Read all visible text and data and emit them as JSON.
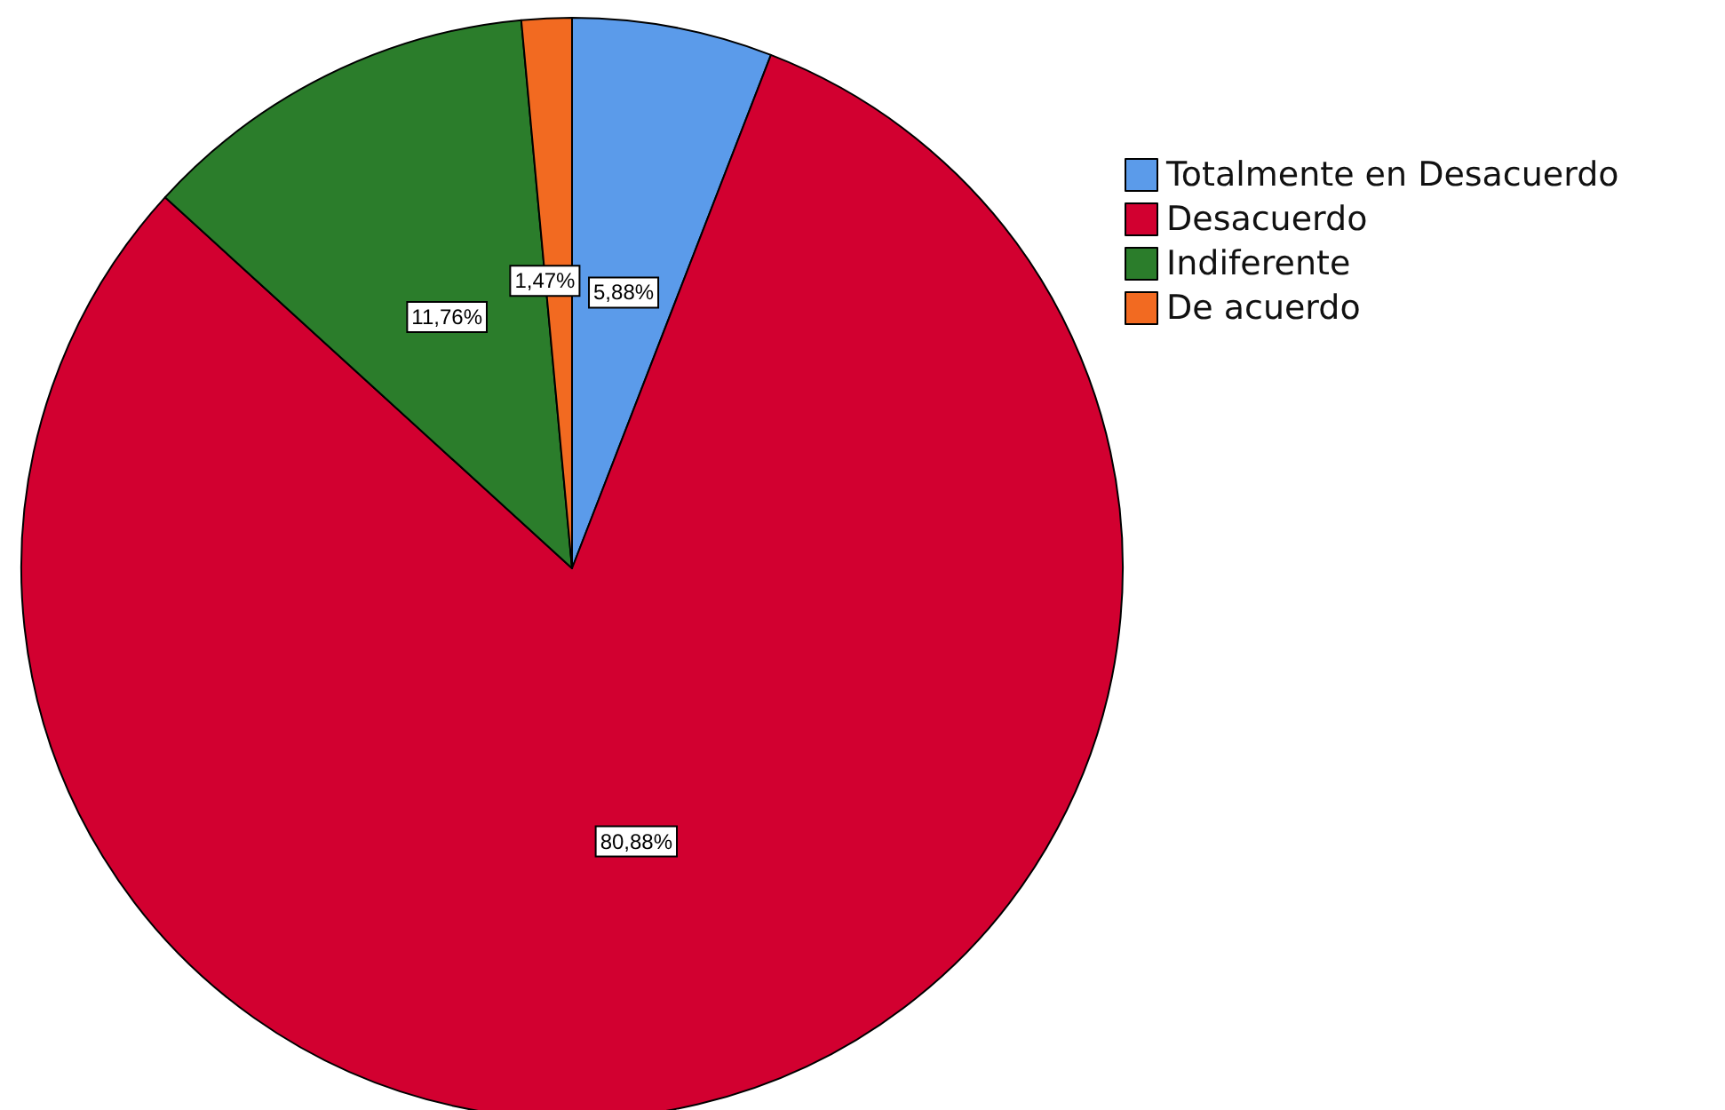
{
  "chart_data": {
    "type": "pie",
    "categories": [
      "Totalmente en Desacuerdo",
      "Desacuerdo",
      "Indiferente",
      "De acuerdo"
    ],
    "values": [
      5.88,
      80.88,
      11.76,
      1.47
    ],
    "colors": [
      "#5b9bea",
      "#d20030",
      "#2b7d2b",
      "#f26a21"
    ],
    "value_labels": [
      "5,88%",
      "80,88%",
      "11,76%",
      "1,47%"
    ],
    "legend": "top right"
  }
}
